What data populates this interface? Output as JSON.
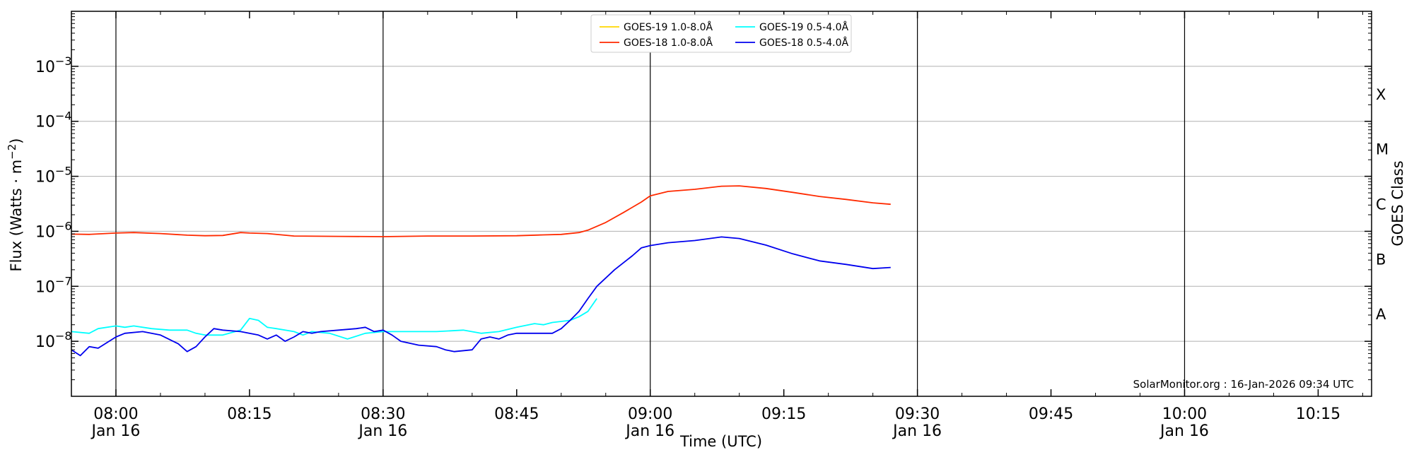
{
  "chart_data": {
    "type": "line",
    "xlabel": "Time (UTC)",
    "ylabel": "Flux (Watts · m⁻²)",
    "ylabel_right": "GOES Class",
    "yscale": "log",
    "ylim": [
      1e-09,
      0.01
    ],
    "xlim": [
      "07:55",
      "10:21"
    ],
    "grid": "horizontal at decades",
    "legend_position": "top-center",
    "credit": "SolarMonitor.org : 16-Jan-2026 09:34 UTC",
    "y_ticks": [
      {
        "value": 1e-08,
        "mant": "10",
        "exp": "−8"
      },
      {
        "value": 1e-07,
        "mant": "10",
        "exp": "−7"
      },
      {
        "value": 1e-06,
        "mant": "10",
        "exp": "−6"
      },
      {
        "value": 1e-05,
        "mant": "10",
        "exp": "−5"
      },
      {
        "value": 0.0001,
        "mant": "10",
        "exp": "−4"
      },
      {
        "value": 0.001,
        "mant": "10",
        "exp": "−3"
      }
    ],
    "x_ticks": [
      {
        "time": "08:00",
        "label": "08:00",
        "sublabel": "Jan 16",
        "vline": true
      },
      {
        "time": "08:15",
        "label": "08:15",
        "sublabel": "",
        "vline": false
      },
      {
        "time": "08:30",
        "label": "08:30",
        "sublabel": "Jan 16",
        "vline": true
      },
      {
        "time": "08:45",
        "label": "08:45",
        "sublabel": "",
        "vline": false
      },
      {
        "time": "09:00",
        "label": "09:00",
        "sublabel": "Jan 16",
        "vline": true
      },
      {
        "time": "09:15",
        "label": "09:15",
        "sublabel": "",
        "vline": false
      },
      {
        "time": "09:30",
        "label": "09:30",
        "sublabel": "Jan 16",
        "vline": true
      },
      {
        "time": "09:45",
        "label": "09:45",
        "sublabel": "",
        "vline": false
      },
      {
        "time": "10:00",
        "label": "10:00",
        "sublabel": "Jan 16",
        "vline": true
      },
      {
        "time": "10:15",
        "label": "10:15",
        "sublabel": "",
        "vline": false
      }
    ],
    "goes_classes": [
      {
        "label": "A",
        "value": 3.16e-08
      },
      {
        "label": "B",
        "value": 3.16e-07
      },
      {
        "label": "C",
        "value": 3.16e-06
      },
      {
        "label": "M",
        "value": 3.16e-05
      },
      {
        "label": "X",
        "value": 0.000316
      }
    ],
    "series": [
      {
        "name": "GOES-19 1.0-8.0Å",
        "color": "#ffd700",
        "x": [],
        "y": []
      },
      {
        "name": "GOES-18 1.0-8.0Å",
        "color": "#ff2a00",
        "x": [
          "07:55",
          "07:57",
          "08:00",
          "08:02",
          "08:05",
          "08:08",
          "08:10",
          "08:12",
          "08:14",
          "08:15",
          "08:17",
          "08:20",
          "08:25",
          "08:30",
          "08:35",
          "08:40",
          "08:45",
          "08:48",
          "08:50",
          "08:52",
          "08:53",
          "08:55",
          "08:57",
          "08:59",
          "09:00",
          "09:02",
          "09:05",
          "09:08",
          "09:10",
          "09:13",
          "09:16",
          "09:19",
          "09:22",
          "09:25",
          "09:27"
        ],
        "y": [
          8.9e-07,
          8.8e-07,
          9.3e-07,
          9.5e-07,
          9.1e-07,
          8.5e-07,
          8.3e-07,
          8.4e-07,
          9.5e-07,
          9.3e-07,
          9.1e-07,
          8.2e-07,
          8.1e-07,
          8e-07,
          8.2e-07,
          8.2e-07,
          8.3e-07,
          8.6e-07,
          8.8e-07,
          9.5e-07,
          1.05e-06,
          1.45e-06,
          2.2e-06,
          3.4e-06,
          4.4e-06,
          5.3e-06,
          5.8e-06,
          6.6e-06,
          6.7e-06,
          6e-06,
          5.1e-06,
          4.3e-06,
          3.8e-06,
          3.3e-06,
          3.1e-06
        ]
      },
      {
        "name": "GOES-19 0.5-4.0Å",
        "color": "#00ffff",
        "x": [
          "07:55",
          "07:57",
          "07:58",
          "08:00",
          "08:01",
          "08:02",
          "08:04",
          "08:06",
          "08:08",
          "08:09",
          "08:10",
          "08:12",
          "08:14",
          "08:15",
          "08:16",
          "08:17",
          "08:18",
          "08:20",
          "08:21",
          "08:22",
          "08:24",
          "08:26",
          "08:28",
          "08:30",
          "08:33",
          "08:36",
          "08:39",
          "08:41",
          "08:43",
          "08:45",
          "08:47",
          "08:48",
          "08:49",
          "08:50",
          "08:51",
          "08:52",
          "08:53",
          "08:54"
        ],
        "y": [
          1.5e-08,
          1.4e-08,
          1.7e-08,
          1.9e-08,
          1.8e-08,
          1.9e-08,
          1.7e-08,
          1.6e-08,
          1.6e-08,
          1.4e-08,
          1.3e-08,
          1.3e-08,
          1.6e-08,
          2.6e-08,
          2.4e-08,
          1.8e-08,
          1.7e-08,
          1.5e-08,
          1.3e-08,
          1.5e-08,
          1.4e-08,
          1.1e-08,
          1.4e-08,
          1.5e-08,
          1.5e-08,
          1.5e-08,
          1.6e-08,
          1.4e-08,
          1.5e-08,
          1.8e-08,
          2.1e-08,
          2e-08,
          2.2e-08,
          2.3e-08,
          2.4e-08,
          2.8e-08,
          3.5e-08,
          6e-08
        ]
      },
      {
        "name": "GOES-18 0.5-4.0Å",
        "color": "#0000ee",
        "x": [
          "07:55",
          "07:56",
          "07:57",
          "07:58",
          "08:00",
          "08:01",
          "08:03",
          "08:05",
          "08:07",
          "08:08",
          "08:09",
          "08:10",
          "08:11",
          "08:12",
          "08:14",
          "08:16",
          "08:17",
          "08:18",
          "08:19",
          "08:20",
          "08:21",
          "08:22",
          "08:23",
          "08:25",
          "08:27",
          "08:28",
          "08:29",
          "08:30",
          "08:31",
          "08:32",
          "08:34",
          "08:36",
          "08:37",
          "08:38",
          "08:40",
          "08:41",
          "08:42",
          "08:43",
          "08:44",
          "08:45",
          "08:46",
          "08:47",
          "08:49",
          "08:50",
          "08:51",
          "08:52",
          "08:53",
          "08:54",
          "08:56",
          "08:58",
          "08:59",
          "09:00",
          "09:02",
          "09:05",
          "09:08",
          "09:10",
          "09:13",
          "09:16",
          "09:19",
          "09:22",
          "09:25",
          "09:27"
        ],
        "y": [
          7e-09,
          5.5e-09,
          8e-09,
          7.5e-09,
          1.2e-08,
          1.4e-08,
          1.5e-08,
          1.3e-08,
          9e-09,
          6.5e-09,
          8e-09,
          1.2e-08,
          1.7e-08,
          1.6e-08,
          1.5e-08,
          1.3e-08,
          1.1e-08,
          1.3e-08,
          1e-08,
          1.2e-08,
          1.5e-08,
          1.4e-08,
          1.5e-08,
          1.6e-08,
          1.7e-08,
          1.8e-08,
          1.5e-08,
          1.6e-08,
          1.3e-08,
          1e-08,
          8.5e-09,
          8e-09,
          7e-09,
          6.5e-09,
          7e-09,
          1.1e-08,
          1.2e-08,
          1.1e-08,
          1.3e-08,
          1.4e-08,
          1.4e-08,
          1.4e-08,
          1.4e-08,
          1.7e-08,
          2.4e-08,
          3.5e-08,
          6e-08,
          1e-07,
          2e-07,
          3.6e-07,
          5e-07,
          5.5e-07,
          6.2e-07,
          6.8e-07,
          7.9e-07,
          7.4e-07,
          5.6e-07,
          3.9e-07,
          2.9e-07,
          2.5e-07,
          2.1e-07,
          2.2e-07
        ]
      }
    ]
  }
}
